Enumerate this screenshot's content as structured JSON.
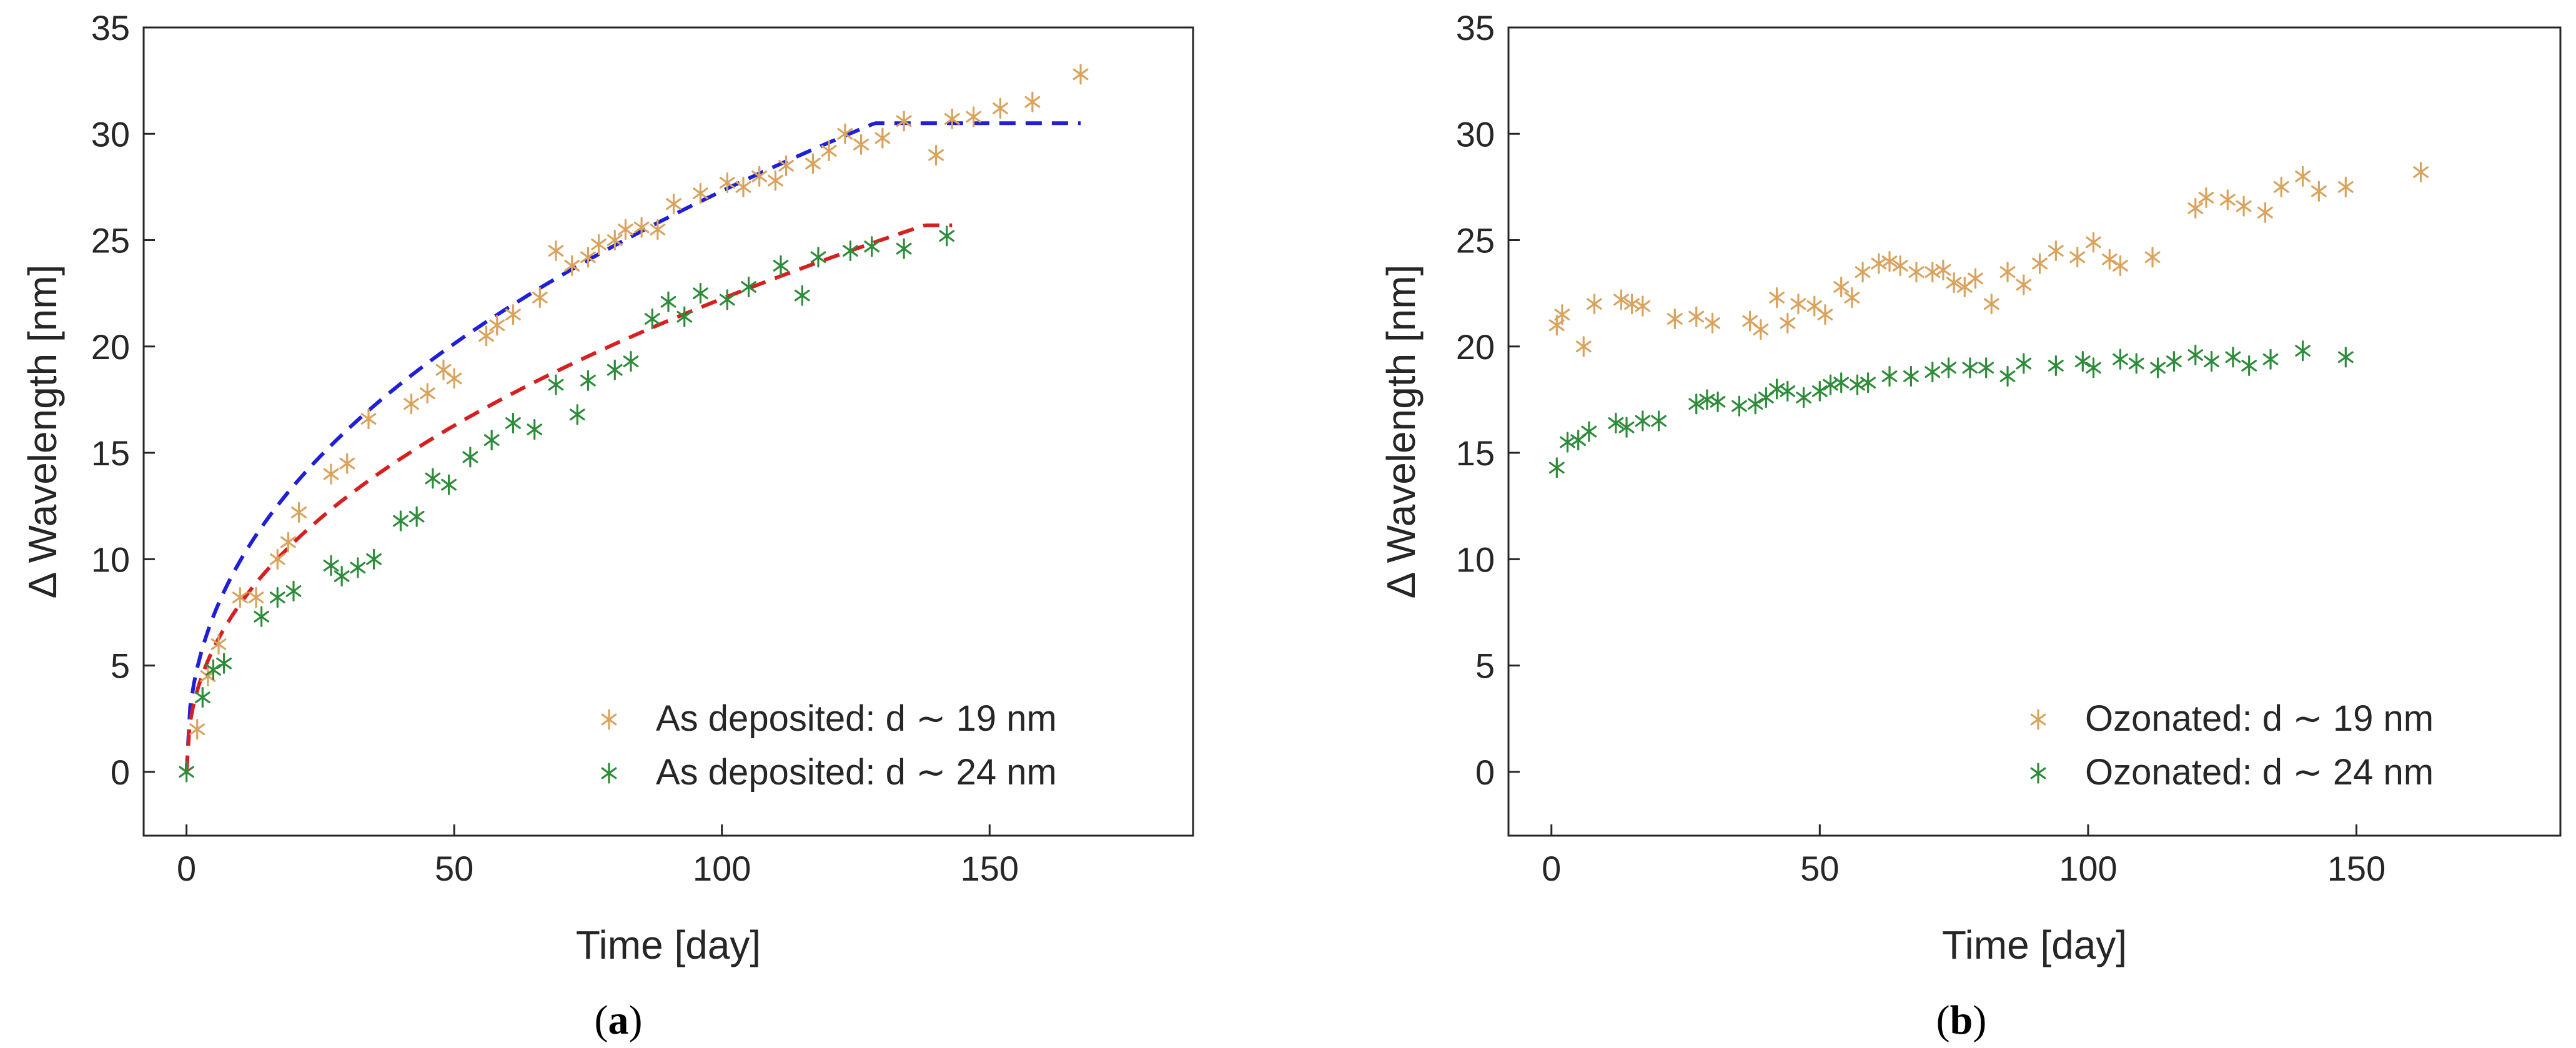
{
  "colors": {
    "tan": "#d9a35e",
    "green": "#2e8b3a",
    "blue": "#1f1fd6",
    "red": "#d62020",
    "axis": "#262626"
  },
  "chart_data": [
    {
      "type": "scatter",
      "panel_label": "(a)",
      "panel_letter": "a",
      "xlabel": "Time [day]",
      "ylabel": "Δ Wavelength [nm]",
      "xlim": [
        -8,
        188
      ],
      "ylim": [
        -3,
        35
      ],
      "xticks": [
        "0",
        "50",
        "100",
        "150"
      ],
      "yticks": [
        "0",
        "5",
        "10",
        "15",
        "20",
        "25",
        "30",
        "35"
      ],
      "legend_position": "bottom-right",
      "series": [
        {
          "name": "As deposited: d ∼ 19 nm",
          "marker": "asterisk",
          "color": "tan",
          "points": [
            [
              0,
              0
            ],
            [
              2,
              2
            ],
            [
              4,
              4.5
            ],
            [
              6,
              6
            ],
            [
              10,
              8.2
            ],
            [
              13,
              8.2
            ],
            [
              17,
              10
            ],
            [
              19,
              10.8
            ],
            [
              21,
              12.2
            ],
            [
              27,
              14
            ],
            [
              30,
              14.5
            ],
            [
              34,
              16.6
            ],
            [
              42,
              17.3
            ],
            [
              45,
              17.8
            ],
            [
              48,
              18.9
            ],
            [
              50,
              18.5
            ],
            [
              56,
              20.5
            ],
            [
              58,
              21
            ],
            [
              61,
              21.5
            ],
            [
              66,
              22.3
            ],
            [
              69,
              24.5
            ],
            [
              72,
              23.8
            ],
            [
              75,
              24.2
            ],
            [
              77,
              24.8
            ],
            [
              80,
              25
            ],
            [
              82,
              25.5
            ],
            [
              85,
              25.6
            ],
            [
              88,
              25.5
            ],
            [
              91,
              26.7
            ],
            [
              96,
              27.2
            ],
            [
              101,
              27.7
            ],
            [
              104,
              27.5
            ],
            [
              107,
              28
            ],
            [
              110,
              27.8
            ],
            [
              112,
              28.5
            ],
            [
              117,
              28.6
            ],
            [
              120,
              29.2
            ],
            [
              123,
              30
            ],
            [
              126,
              29.5
            ],
            [
              130,
              29.8
            ],
            [
              134,
              30.6
            ],
            [
              140,
              29
            ],
            [
              143,
              30.7
            ],
            [
              147,
              30.8
            ],
            [
              152,
              31.2
            ],
            [
              158,
              31.5
            ],
            [
              167,
              32.8
            ]
          ]
        },
        {
          "name": "As deposited: d ∼ 24 nm",
          "marker": "asterisk",
          "color": "green",
          "points": [
            [
              0,
              0
            ],
            [
              3,
              3.5
            ],
            [
              5,
              4.8
            ],
            [
              7,
              5.1
            ],
            [
              14,
              7.3
            ],
            [
              17,
              8.2
            ],
            [
              20,
              8.5
            ],
            [
              27,
              9.7
            ],
            [
              29,
              9.2
            ],
            [
              32,
              9.6
            ],
            [
              35,
              10
            ],
            [
              40,
              11.8
            ],
            [
              43,
              12
            ],
            [
              46,
              13.8
            ],
            [
              49,
              13.5
            ],
            [
              53,
              14.8
            ],
            [
              57,
              15.6
            ],
            [
              61,
              16.4
            ],
            [
              65,
              16.1
            ],
            [
              69,
              18.2
            ],
            [
              73,
              16.8
            ],
            [
              75,
              18.4
            ],
            [
              80,
              18.9
            ],
            [
              83,
              19.3
            ],
            [
              87,
              21.3
            ],
            [
              90,
              22.1
            ],
            [
              93,
              21.4
            ],
            [
              96,
              22.5
            ],
            [
              101,
              22.2
            ],
            [
              105,
              22.8
            ],
            [
              111,
              23.8
            ],
            [
              115,
              22.4
            ],
            [
              118,
              24.2
            ],
            [
              124,
              24.5
            ],
            [
              128,
              24.7
            ],
            [
              134,
              24.6
            ],
            [
              142,
              25.2
            ]
          ]
        }
      ],
      "fits": [
        {
          "name": "fit 19 nm",
          "color": "blue",
          "a": 3.6,
          "b": 0.44,
          "x_end": 167,
          "y_max": 30.5
        },
        {
          "name": "fit 24 nm",
          "color": "red",
          "a": 2.8,
          "b": 0.45,
          "x_end": 143,
          "y_max": 25.7
        }
      ]
    },
    {
      "type": "scatter",
      "panel_label": "(b)",
      "panel_letter": "b",
      "xlabel": "Time [day]",
      "ylabel": "Δ Wavelength [nm]",
      "xlim": [
        -8,
        188
      ],
      "ylim": [
        -3,
        35
      ],
      "xticks": [
        "0",
        "50",
        "100",
        "150"
      ],
      "yticks": [
        "0",
        "5",
        "10",
        "15",
        "20",
        "25",
        "30",
        "35"
      ],
      "legend_position": "bottom-right",
      "series": [
        {
          "name": "Ozonated: d ∼ 19 nm",
          "marker": "asterisk",
          "color": "tan",
          "points": [
            [
              1,
              21
            ],
            [
              2,
              21.5
            ],
            [
              6,
              20
            ],
            [
              8,
              22
            ],
            [
              13,
              22.2
            ],
            [
              15,
              22
            ],
            [
              17,
              21.9
            ],
            [
              23,
              21.3
            ],
            [
              27,
              21.4
            ],
            [
              30,
              21.1
            ],
            [
              37,
              21.2
            ],
            [
              39,
              20.8
            ],
            [
              42,
              22.3
            ],
            [
              44,
              21.1
            ],
            [
              46,
              22
            ],
            [
              49,
              21.9
            ],
            [
              51,
              21.5
            ],
            [
              54,
              22.8
            ],
            [
              56,
              22.3
            ],
            [
              58,
              23.5
            ],
            [
              61,
              23.9
            ],
            [
              63,
              24
            ],
            [
              65,
              23.8
            ],
            [
              68,
              23.5
            ],
            [
              71,
              23.5
            ],
            [
              73,
              23.6
            ],
            [
              75,
              23
            ],
            [
              77,
              22.8
            ],
            [
              79,
              23.2
            ],
            [
              82,
              22
            ],
            [
              85,
              23.5
            ],
            [
              88,
              22.9
            ],
            [
              91,
              23.9
            ],
            [
              94,
              24.5
            ],
            [
              98,
              24.2
            ],
            [
              101,
              24.9
            ],
            [
              104,
              24.1
            ],
            [
              106,
              23.8
            ],
            [
              112,
              24.2
            ],
            [
              120,
              26.5
            ],
            [
              122,
              27
            ],
            [
              126,
              26.9
            ],
            [
              129,
              26.6
            ],
            [
              133,
              26.3
            ],
            [
              136,
              27.5
            ],
            [
              140,
              28
            ],
            [
              143,
              27.3
            ],
            [
              148,
              27.5
            ],
            [
              162,
              28.2
            ]
          ]
        },
        {
          "name": "Ozonated: d ∼ 24 nm",
          "marker": "asterisk",
          "color": "green",
          "points": [
            [
              1,
              14.3
            ],
            [
              3,
              15.5
            ],
            [
              5,
              15.6
            ],
            [
              7,
              16
            ],
            [
              12,
              16.4
            ],
            [
              14,
              16.2
            ],
            [
              17,
              16.5
            ],
            [
              20,
              16.5
            ],
            [
              27,
              17.3
            ],
            [
              29,
              17.5
            ],
            [
              31,
              17.4
            ],
            [
              35,
              17.2
            ],
            [
              38,
              17.3
            ],
            [
              40,
              17.6
            ],
            [
              42,
              18
            ],
            [
              44,
              17.9
            ],
            [
              47,
              17.6
            ],
            [
              50,
              17.9
            ],
            [
              52,
              18.2
            ],
            [
              54,
              18.3
            ],
            [
              57,
              18.2
            ],
            [
              59,
              18.3
            ],
            [
              63,
              18.6
            ],
            [
              67,
              18.6
            ],
            [
              71,
              18.8
            ],
            [
              74,
              19
            ],
            [
              78,
              19
            ],
            [
              81,
              19
            ],
            [
              85,
              18.6
            ],
            [
              88,
              19.2
            ],
            [
              94,
              19.1
            ],
            [
              99,
              19.3
            ],
            [
              101,
              19
            ],
            [
              106,
              19.4
            ],
            [
              109,
              19.2
            ],
            [
              113,
              19
            ],
            [
              116,
              19.3
            ],
            [
              120,
              19.6
            ],
            [
              123,
              19.3
            ],
            [
              127,
              19.5
            ],
            [
              130,
              19.1
            ],
            [
              134,
              19.4
            ],
            [
              140,
              19.8
            ],
            [
              148,
              19.5
            ]
          ]
        }
      ]
    }
  ]
}
